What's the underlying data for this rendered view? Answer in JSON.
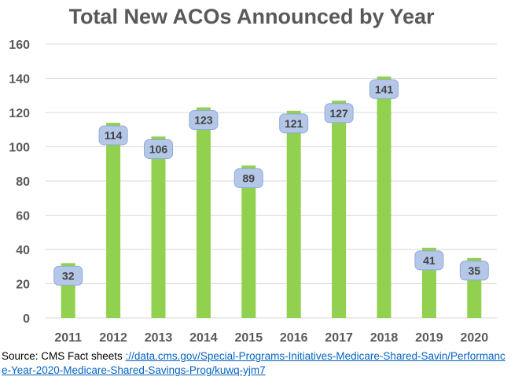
{
  "chart_data": {
    "type": "bar",
    "title": "Total New ACOs Announced by Year",
    "xlabel": "",
    "ylabel": "",
    "categories": [
      "2011",
      "2012",
      "2013",
      "2014",
      "2015",
      "2016",
      "2017",
      "2018",
      "2019",
      "2020"
    ],
    "values": [
      32,
      114,
      106,
      123,
      89,
      121,
      127,
      141,
      41,
      35
    ],
    "ylim": [
      0,
      160
    ],
    "yticks": [
      0,
      20,
      40,
      60,
      80,
      100,
      120,
      140,
      160
    ],
    "grid": true,
    "legend": "none",
    "data_labels": true
  },
  "colors": {
    "bar": "#92d050",
    "label_box": "#b4c7e7",
    "label_box_border": "#8faadc",
    "gridline": "#d9d9d9",
    "axis_text": "#595959",
    "link": "#0563c1"
  },
  "source": {
    "prefix": "Source: CMS Fact sheets ",
    "link_text": "://data.cms.gov/Special-Programs-Initiatives-Medicare-Shared-Savin/Performance-Year-2020-Medicare-Shared-Savings-Prog/kuwq-yjm7"
  }
}
